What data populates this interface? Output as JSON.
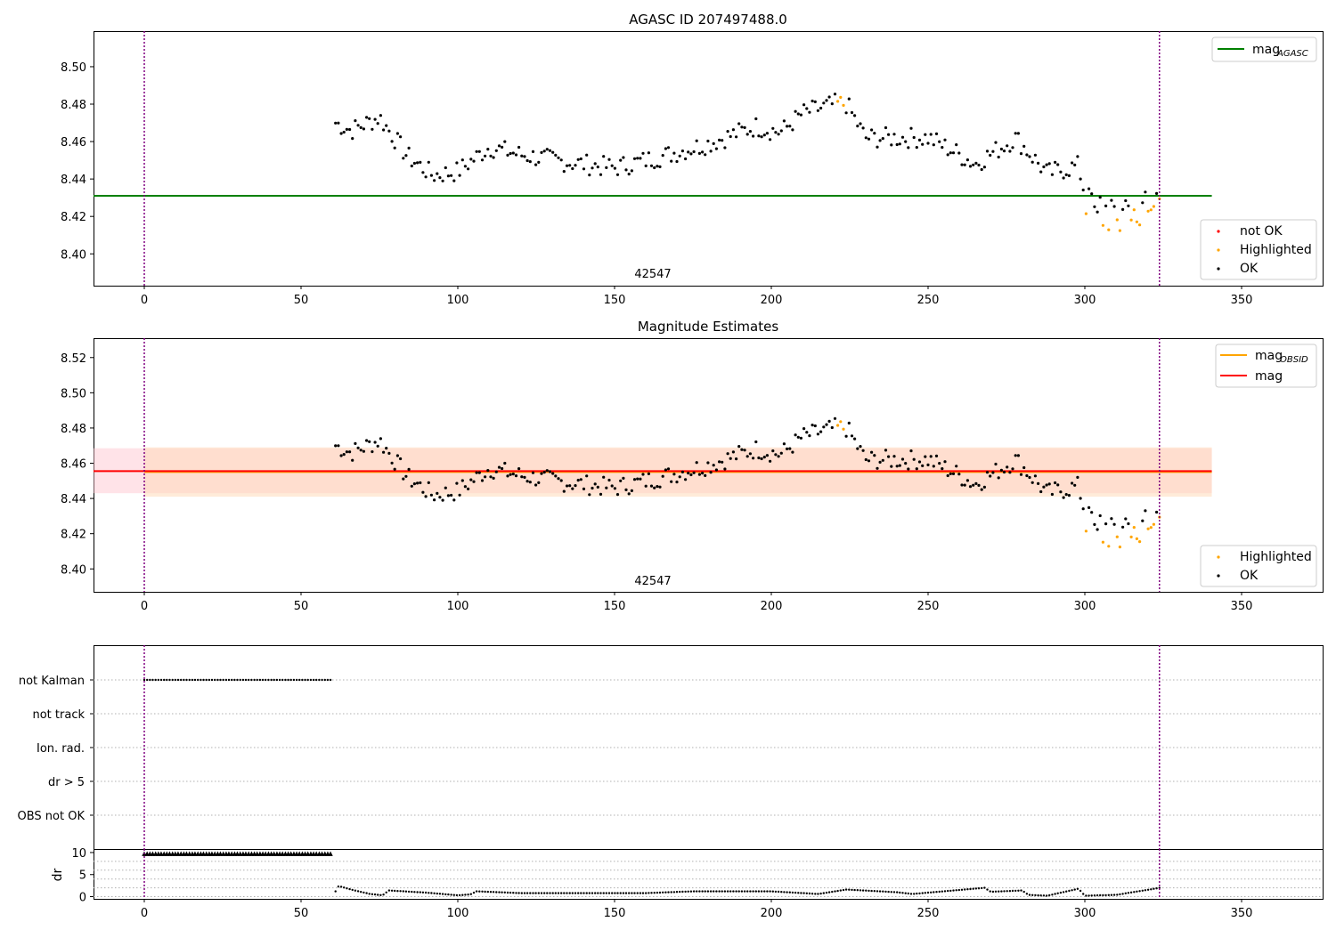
{
  "chart_data": [
    {
      "type": "scatter",
      "title": "AGASC ID 207497488.0",
      "obsid_label": "42547",
      "xlim": [
        -16,
        376
      ],
      "ylim": [
        8.383,
        8.519
      ],
      "x_ticks": [
        "0",
        "50",
        "100",
        "150",
        "200",
        "250",
        "300",
        "350"
      ],
      "y_ticks": [
        "8.40",
        "8.42",
        "8.44",
        "8.46",
        "8.48",
        "8.50"
      ],
      "vlines": [
        0,
        323.8
      ],
      "hline": {
        "name": "mag_AGASC",
        "value": 8.431,
        "x_range": [
          -16,
          340.5
        ],
        "color": "#008000"
      },
      "legend_top": [
        "mag",
        "AGASC"
      ],
      "legend_bottom": [
        "not OK",
        "Highlighted",
        "OK"
      ],
      "colors": {
        "not_ok": "#ff0000",
        "highlighted": "#ffa500",
        "ok": "#000000",
        "vline": "#800080"
      }
    },
    {
      "type": "scatter",
      "title": "Magnitude Estimates",
      "obsid_label": "42547",
      "xlim": [
        -16,
        376
      ],
      "ylim": [
        8.387,
        8.531
      ],
      "x_ticks": [
        "0",
        "50",
        "100",
        "150",
        "200",
        "250",
        "300",
        "350"
      ],
      "y_ticks": [
        "8.40",
        "8.42",
        "8.44",
        "8.46",
        "8.48",
        "8.50",
        "8.52"
      ],
      "vlines": [
        0,
        323.8
      ],
      "mag": 8.4555,
      "mag_band": [
        8.443,
        8.4685
      ],
      "mag_obsid": 8.455,
      "mag_obsid_band": [
        8.441,
        8.469
      ],
      "band_x_range": [
        -16,
        340.5
      ],
      "legend_top": [
        "mag",
        "OBSID",
        "mag"
      ],
      "legend_bottom": [
        "Highlighted",
        "OK"
      ],
      "colors": {
        "mag": "#ff0000",
        "mag_obsid": "#ffa500",
        "band": "#ffc0cb",
        "band_obsid": "#ffdab9"
      }
    },
    {
      "type": "scatter",
      "title": "",
      "categories": [
        "not Kalman",
        "not track",
        "Ion. rad.",
        "dr > 5",
        "OBS not OK"
      ],
      "not_kalman_x_range": [
        0,
        60
      ],
      "xlim": [
        -16,
        376
      ],
      "x_ticks": [
        "0",
        "50",
        "100",
        "150",
        "200",
        "250",
        "300",
        "350"
      ]
    },
    {
      "type": "scatter",
      "title": "",
      "ylabel": "dr",
      "ylim": [
        -0.5,
        10.8
      ],
      "y_ticks": [
        "0",
        "5",
        "10"
      ],
      "x_ticks": [
        "0",
        "50",
        "100",
        "150",
        "200",
        "250",
        "300",
        "350"
      ],
      "xlim": [
        -16,
        376
      ],
      "dr_capped": {
        "value": 10,
        "x_range": [
          0,
          60
        ]
      }
    }
  ]
}
